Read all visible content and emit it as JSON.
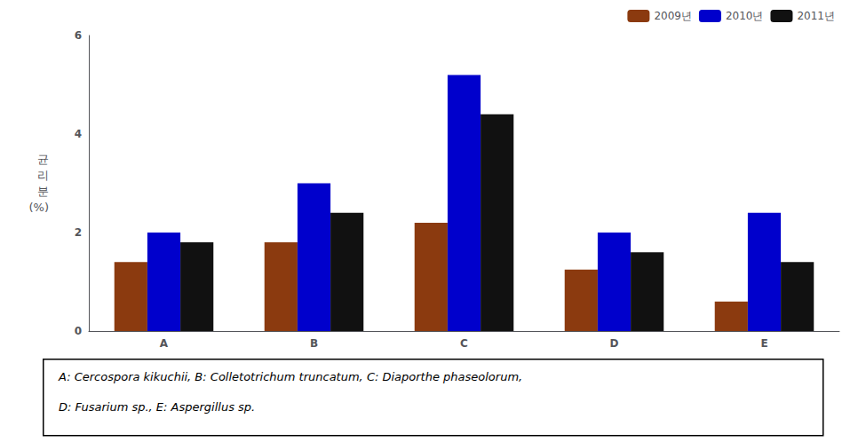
{
  "chart_data": {
    "type": "bar",
    "categories": [
      "A",
      "B",
      "C",
      "D",
      "E"
    ],
    "series": [
      {
        "name": "2009년",
        "color": "#8B3A0F",
        "values": [
          1.4,
          1.8,
          2.2,
          1.25,
          0.6
        ]
      },
      {
        "name": "2010년",
        "color": "#0000CC",
        "values": [
          2.0,
          3.0,
          5.2,
          2.0,
          2.4
        ]
      },
      {
        "name": "2011년",
        "color": "#111111",
        "values": [
          1.8,
          2.4,
          4.4,
          1.6,
          1.4
        ]
      }
    ],
    "ylabel": "균\n리\n분\n(%)",
    "annotations": [
      "A: Cercospora kikuchii, B: Colletotrichum truncatum, C: Diaporthe phaseolorum,",
      "D: Fusarium sp., E: Aspergillus sp."
    ],
    "ylim": [
      0,
      6
    ],
    "yticks": [
      0,
      2,
      4,
      6
    ],
    "grid": false,
    "legend": "upper right"
  }
}
